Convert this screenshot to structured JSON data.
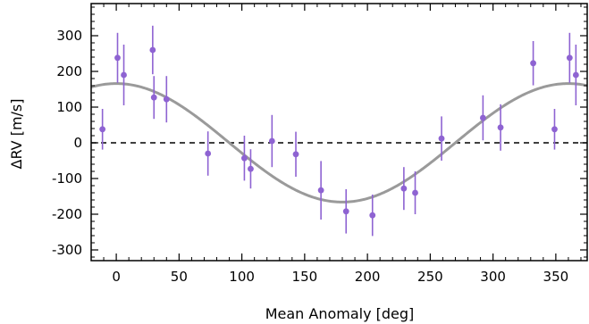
{
  "chart_data": {
    "type": "scatter",
    "xlabel": "Mean Anomaly [deg]",
    "ylabel": "ΔRV [m/s]",
    "xlim": [
      -20,
      375
    ],
    "ylim": [
      -330,
      390
    ],
    "xticks": [
      0,
      50,
      100,
      150,
      200,
      250,
      300,
      350
    ],
    "yticks": [
      -300,
      -200,
      -100,
      0,
      100,
      200,
      300
    ],
    "grid": false,
    "zero_line": true,
    "colors": {
      "points": "#8e63d2",
      "model": "#9a9a9a",
      "axis": "#000000"
    },
    "series": [
      {
        "kind": "points_with_errorbars",
        "points": [
          {
            "x": -11,
            "y": 38,
            "err": 57
          },
          {
            "x": 1,
            "y": 238,
            "err": 70
          },
          {
            "x": 6,
            "y": 190,
            "err": 85
          },
          {
            "x": 29,
            "y": 260,
            "err": 68
          },
          {
            "x": 30,
            "y": 127,
            "err": 60
          },
          {
            "x": 40,
            "y": 122,
            "err": 65
          },
          {
            "x": 73,
            "y": -30,
            "err": 62
          },
          {
            "x": 102,
            "y": -43,
            "err": 63
          },
          {
            "x": 107,
            "y": -73,
            "err": 55
          },
          {
            "x": 124,
            "y": 5,
            "err": 73
          },
          {
            "x": 143,
            "y": -32,
            "err": 63
          },
          {
            "x": 163,
            "y": -133,
            "err": 82
          },
          {
            "x": 183,
            "y": -192,
            "err": 62
          },
          {
            "x": 204,
            "y": -203,
            "err": 58
          },
          {
            "x": 229,
            "y": -128,
            "err": 60
          },
          {
            "x": 238,
            "y": -140,
            "err": 60
          },
          {
            "x": 259,
            "y": 12,
            "err": 62
          },
          {
            "x": 292,
            "y": 70,
            "err": 63
          },
          {
            "x": 306,
            "y": 43,
            "err": 65
          },
          {
            "x": 332,
            "y": 223,
            "err": 62
          },
          {
            "x": 349,
            "y": 38,
            "err": 57
          },
          {
            "x": 361,
            "y": 238,
            "err": 70
          },
          {
            "x": 366,
            "y": 190,
            "err": 85
          }
        ]
      },
      {
        "kind": "model_curve",
        "function": "K*cos(x)",
        "amplitude": 166
      }
    ]
  }
}
